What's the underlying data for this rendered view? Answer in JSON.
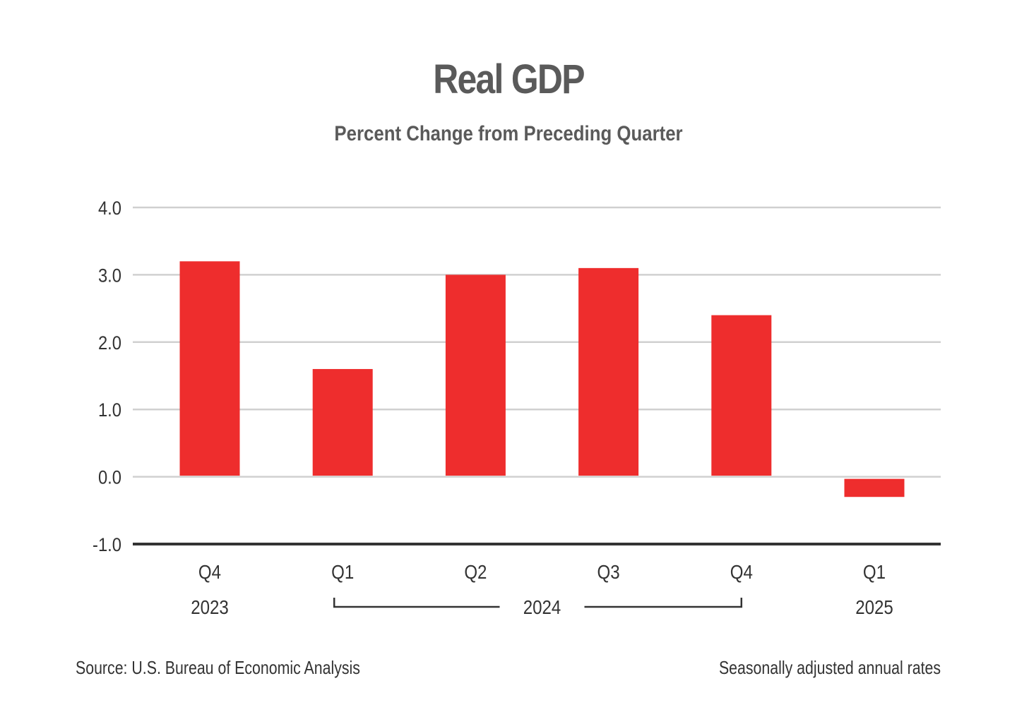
{
  "title": "Real GDP",
  "subtitle": "Percent Change from Preceding Quarter",
  "footer": {
    "source": "Source: U.S. Bureau of Economic Analysis",
    "note": "Seasonally adjusted annual rates"
  },
  "colors": {
    "bar": "#ee2d2d",
    "grid": "#d0d0d0",
    "axis": "#333333",
    "text": "#333333",
    "title": "#5a5a5a"
  },
  "chart_data": {
    "type": "bar",
    "title": "Real GDP",
    "subtitle": "Percent Change from Preceding Quarter",
    "categories": [
      "Q4",
      "Q1",
      "Q2",
      "Q3",
      "Q4",
      "Q1"
    ],
    "years": [
      {
        "label": "2023",
        "from": 0,
        "to": 0
      },
      {
        "label": "2024",
        "from": 1,
        "to": 4
      },
      {
        "label": "2025",
        "from": 5,
        "to": 5
      }
    ],
    "series": [
      {
        "values": [
          3.2,
          1.6,
          3.0,
          3.1,
          2.4,
          -0.3
        ]
      }
    ],
    "ylim": [
      -1.0,
      4.0
    ],
    "yticks": [
      4.0,
      3.0,
      2.0,
      1.0,
      0.0,
      -1.0
    ],
    "ytick_labels": [
      "4.0",
      "3.0",
      "2.0",
      "1.0",
      "0.0",
      "-1.0"
    ],
    "grid": true,
    "xlabel": "",
    "ylabel": ""
  }
}
